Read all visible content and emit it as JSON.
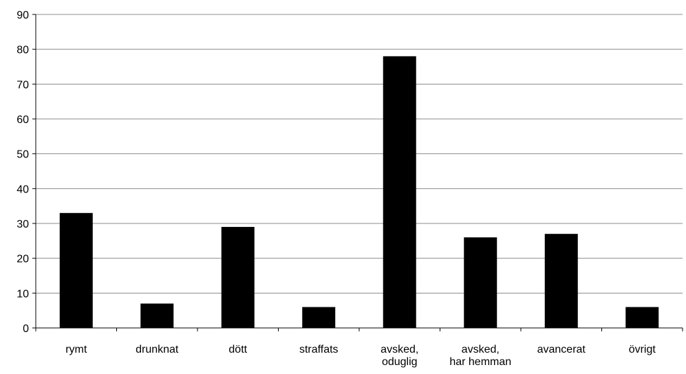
{
  "chart_data": {
    "type": "bar",
    "categories": [
      [
        "rymt"
      ],
      [
        "drunknat"
      ],
      [
        "dött"
      ],
      [
        "straffats"
      ],
      [
        "avsked,",
        "oduglig"
      ],
      [
        "avsked,",
        "har hemman"
      ],
      [
        "avancerat"
      ],
      [
        "övrigt"
      ]
    ],
    "values": [
      33,
      7,
      29,
      6,
      78,
      26,
      27,
      6
    ],
    "ylim": [
      0,
      90
    ],
    "yticks": [
      0,
      10,
      20,
      30,
      40,
      50,
      60,
      70,
      80,
      90
    ],
    "grid": true,
    "legend": "none",
    "bar_color": "#000000",
    "grid_color": "#8c8c8c",
    "axis_color": "#000000"
  }
}
